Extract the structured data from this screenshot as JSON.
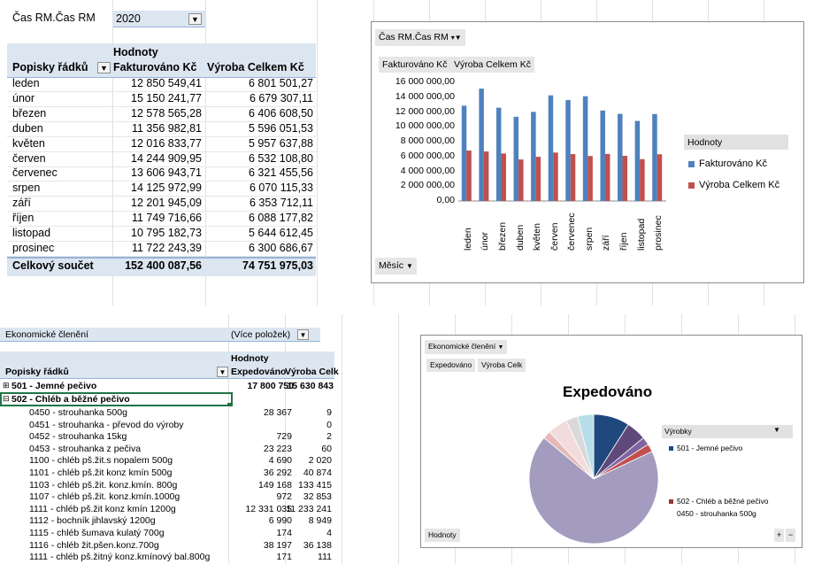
{
  "top_pivot": {
    "filter_field": "Čas RM.Čas RM",
    "filter_value": "2020",
    "values_header": "Hodnoty",
    "row_header": "Popisky řádků",
    "col1_header": "Fakturováno Kč",
    "col2_header": "Výroba Celkem Kč",
    "rows": [
      {
        "label": "leden",
        "v1": "12 850 549,41",
        "v2": "6 801 501,27"
      },
      {
        "label": "únor",
        "v1": "15 150 241,77",
        "v2": "6 679 307,11"
      },
      {
        "label": "březen",
        "v1": "12 578 565,28",
        "v2": "6 406 608,50"
      },
      {
        "label": "duben",
        "v1": "11 356 982,81",
        "v2": "5 596 051,53"
      },
      {
        "label": "květen",
        "v1": "12 016 833,77",
        "v2": "5 957 637,88"
      },
      {
        "label": "červen",
        "v1": "14 244 909,95",
        "v2": "6 532 108,80"
      },
      {
        "label": "červenec",
        "v1": "13 606 943,71",
        "v2": "6 321 455,56"
      },
      {
        "label": "srpen",
        "v1": "14 125 972,99",
        "v2": "6 070 115,33"
      },
      {
        "label": "září",
        "v1": "12 201 945,09",
        "v2": "6 353 712,11"
      },
      {
        "label": "říjen",
        "v1": "11 749 716,66",
        "v2": "6 088 177,82"
      },
      {
        "label": "listopad",
        "v1": "10 795 182,73",
        "v2": "5 644 612,45"
      },
      {
        "label": "prosinec",
        "v1": "11 722 243,39",
        "v2": "6 300 686,67"
      }
    ],
    "total_label": "Celkový součet",
    "total_v1": "152 400 087,56",
    "total_v2": "74 751 975,03"
  },
  "top_chart": {
    "filter_button": "Čas RM.Čas RM",
    "field_button_1": "Fakturováno Kč",
    "field_button_2": "Výroba Celkem Kč",
    "axis_button": "Měsíc",
    "legend_title": "Hodnoty",
    "colors": {
      "series1": "#4f81bd",
      "series2": "#c0504d"
    }
  },
  "chart_data": [
    {
      "type": "bar",
      "categories": [
        "leden",
        "únor",
        "březen",
        "duben",
        "květen",
        "červen",
        "červenec",
        "srpen",
        "září",
        "říjen",
        "listopad",
        "prosinec"
      ],
      "series": [
        {
          "name": "Fakturováno Kč",
          "values": [
            12850549.41,
            15150241.77,
            12578565.28,
            11356982.81,
            12016833.77,
            14244909.95,
            13606943.71,
            14125972.99,
            12201945.09,
            11749716.66,
            10795182.73,
            11722243.39
          ]
        },
        {
          "name": "Výroba Celkem Kč",
          "values": [
            6801501.27,
            6679307.11,
            6406608.5,
            5596051.53,
            5957637.88,
            6532108.8,
            6321455.56,
            6070115.33,
            6353712.11,
            6088177.82,
            5644612.45,
            6300686.67
          ]
        }
      ],
      "yticks": [
        "16 000 000,00",
        "14 000 000,00",
        "12 000 000,00",
        "10 000 000,00",
        "8 000 000,00",
        "6 000 000,00",
        "4 000 000,00",
        "2 000 000,00",
        "0,00"
      ],
      "ylim": [
        0,
        16000000
      ],
      "legend": "right"
    },
    {
      "type": "pie",
      "title": "Expedováno",
      "slices": [
        {
          "label": "501 - Jemné pečivo",
          "value": 0.09,
          "color": "#1f497d"
        },
        {
          "label": "",
          "value": 0.05,
          "color": "#5f497a"
        },
        {
          "label": "",
          "value": 0.02,
          "color": "#8064a2"
        },
        {
          "label": "",
          "value": 0.02,
          "color": "#c0504d"
        },
        {
          "label": "",
          "value": 0.68,
          "color": "#a39cbf"
        },
        {
          "label": "",
          "value": 0.02,
          "color": "#e6b9b8"
        },
        {
          "label": "",
          "value": 0.05,
          "color": "#f2dcdb"
        },
        {
          "label": "",
          "value": 0.03,
          "color": "#d9d9d9"
        },
        {
          "label": "",
          "value": 0.04,
          "color": "#b7dee8"
        }
      ],
      "legend": "right"
    }
  ],
  "bottom_pivot": {
    "filter_field": "Ekonomické členění",
    "filter_value": "(Více položek)",
    "values_header": "Hodnoty",
    "row_header": "Popisky řádků",
    "col1_header": "Expedováno",
    "col2_header": "Výroba Celk",
    "groups": [
      {
        "label": "501 - Jemné pečivo",
        "expand": "⊞",
        "v1": "17 800 750",
        "v2": "15 630 843"
      },
      {
        "label": "502 - Chléb a běžné pečivo",
        "expand": "⊟",
        "v1": "",
        "v2": ""
      }
    ],
    "rows": [
      {
        "label": "0450 - strouhanka  500g",
        "v1": "28 367",
        "v2": "9"
      },
      {
        "label": "0451 - strouhanka - převod do výroby",
        "v1": "",
        "v2": "0"
      },
      {
        "label": "0452 - strouhanka  15kg",
        "v1": "729",
        "v2": "2"
      },
      {
        "label": "0453 - strouhanka z pečiva",
        "v1": "23 223",
        "v2": "60"
      },
      {
        "label": "1100 - chléb pš.žit.s nopalem 500g",
        "v1": "4 690",
        "v2": "2 020"
      },
      {
        "label": "1101 - chléb pš.žit  konz kmín  500g",
        "v1": "36 292",
        "v2": "40 874"
      },
      {
        "label": "1103 - chléb pš.žit. konz.kmín. 800g",
        "v1": "149 168",
        "v2": "133 415"
      },
      {
        "label": "1107 - chléb pš.žit. konz.kmín.1000g",
        "v1": "972",
        "v2": "32 853"
      },
      {
        "label": "1111 - chléb pš.žit  konz kmín 1200g",
        "v1": "12 331 035",
        "v2": "11 233 241"
      },
      {
        "label": "1112 - bochník jihlavský 1200g",
        "v1": "6 990",
        "v2": "8 949"
      },
      {
        "label": "1115 - chléb šumava kulatý 700g",
        "v1": "174",
        "v2": "4"
      },
      {
        "label": "1116 - chléb žit.pšen.konz.700g",
        "v1": "38 197",
        "v2": "36 138"
      },
      {
        "label": "1111 - chléb pš.žitný konz.kmínový bal.800g",
        "v1": "171",
        "v2": "111"
      }
    ]
  },
  "bottom_chart": {
    "filter_button": "Ekonomické členění",
    "field_button_1": "Expedováno",
    "field_button_2": "Výroba Celk",
    "legend_title": "Výrobky",
    "legend_item_1": "501 - Jemné pečivo",
    "legend_item_2": "502 - Chléb a běžné pečivo",
    "legend_item_2b": "0450 - strouhanka  500g",
    "values_button": "Hodnoty",
    "zoom_plus": "+",
    "zoom_minus": "−"
  }
}
